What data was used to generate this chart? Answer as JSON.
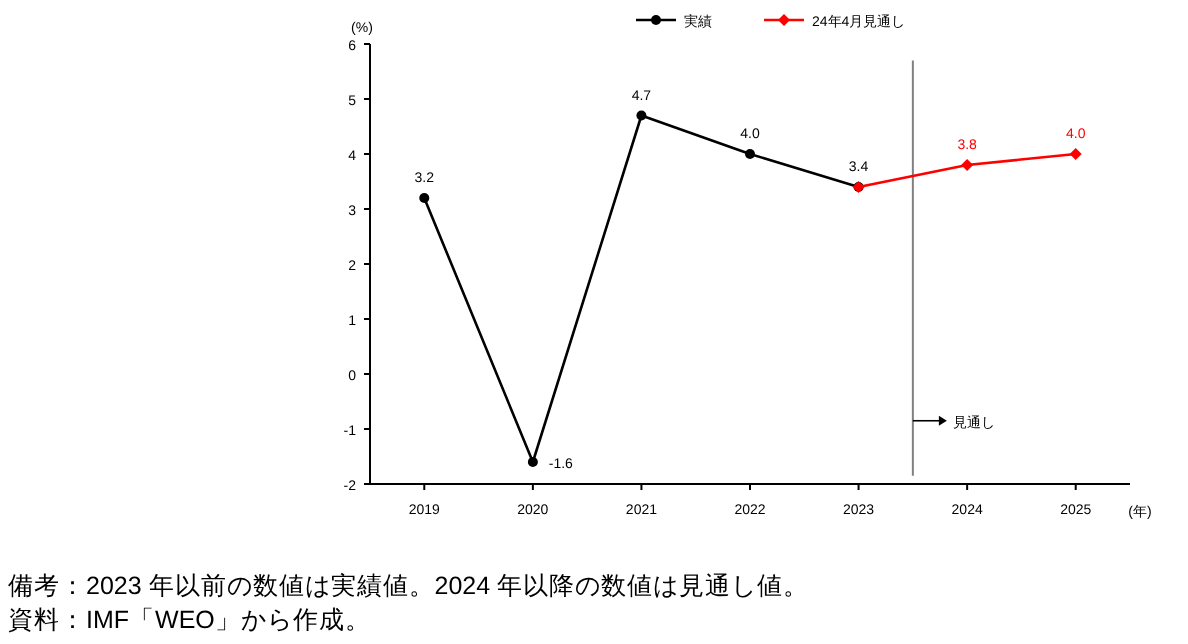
{
  "chart_data": {
    "type": "line",
    "ylabel": "(%)",
    "xlabel": "(年)",
    "x": [
      2019,
      2020,
      2021,
      2022,
      2023,
      2024,
      2025
    ],
    "xlim": [
      2018.5,
      2025.5
    ],
    "xticks": [
      2019,
      2020,
      2021,
      2022,
      2023,
      2024,
      2025
    ],
    "ylim": [
      -2,
      6
    ],
    "yticks": [
      -2,
      -1,
      0,
      1,
      2,
      3,
      4,
      5,
      6
    ],
    "grid": false,
    "legend": "top",
    "line_style": "solid",
    "series": [
      {
        "name": "実績",
        "color": "#000000",
        "marker": "circle",
        "values": [
          3.2,
          -1.6,
          4.7,
          4.0,
          3.4,
          null,
          null
        ],
        "value_labels": [
          "3.2",
          "-1.6",
          "4.7",
          "4.0",
          "3.4",
          null,
          null
        ]
      },
      {
        "name": "24年4月見通し",
        "color": "#ff0000",
        "marker": "diamond",
        "values": [
          null,
          null,
          null,
          null,
          3.4,
          3.8,
          4.0
        ],
        "value_labels": [
          null,
          null,
          null,
          null,
          null,
          "3.8",
          "4.0"
        ]
      }
    ],
    "ref_lines": [
      {
        "axis": "x",
        "value": 2023.5,
        "label": "見通し",
        "color": "#808080",
        "line_style": "solid"
      }
    ],
    "annotations": [
      "備考：2023 年以前の数値は実績値。2024 年以降の数値は見通し値。",
      "資料：IMF「WEO」から作成。"
    ]
  }
}
